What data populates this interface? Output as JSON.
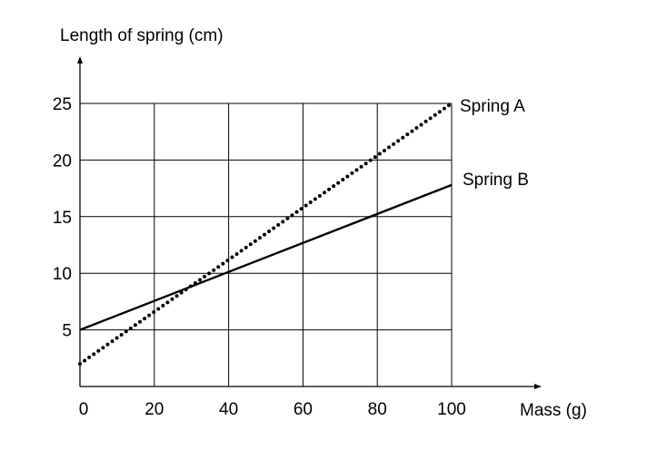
{
  "chart_data": {
    "type": "line",
    "title": "",
    "ylabel": "Length of spring (cm)",
    "xlabel": "Mass (g)",
    "xlim": [
      0,
      100
    ],
    "ylim": [
      0,
      25
    ],
    "x_ticks": [
      0,
      20,
      40,
      60,
      80,
      100
    ],
    "y_ticks": [
      5,
      10,
      15,
      20,
      25
    ],
    "x_tick_labels": [
      "0",
      "20",
      "40",
      "60",
      "80",
      "100"
    ],
    "y_tick_labels": [
      "5",
      "10",
      "15",
      "20",
      "25"
    ],
    "grid": true,
    "series": [
      {
        "name": "Spring A",
        "style": "dotted",
        "color": "#000000",
        "x": [
          0,
          100
        ],
        "values": [
          2,
          25
        ]
      },
      {
        "name": "Spring B",
        "style": "solid",
        "color": "#000000",
        "x": [
          0,
          100
        ],
        "values": [
          5,
          17.8
        ]
      }
    ]
  }
}
